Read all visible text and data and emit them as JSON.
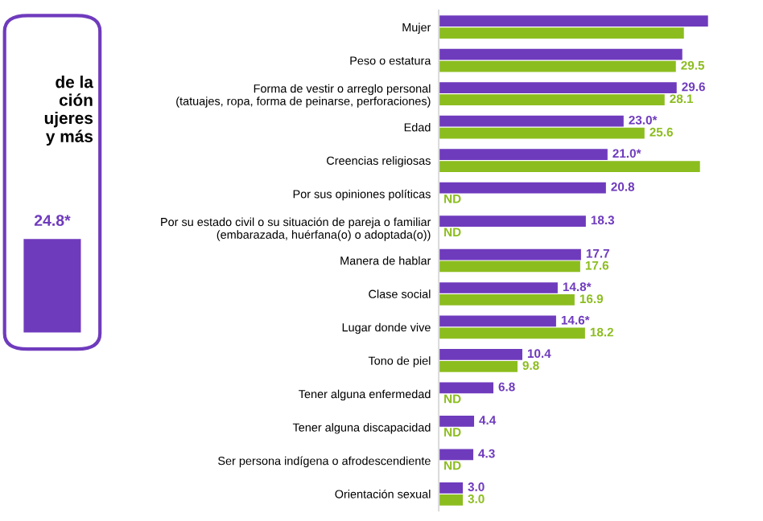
{
  "chart_data": [
    {
      "type": "other",
      "annotations": [
        "de la\nción\nujeres\ny más",
        "24.8*"
      ],
      "color": "#6f3bbd"
    },
    {
      "type": "bar",
      "orientation": "horizontal",
      "tick_labels": "y",
      "categories": [
        "Mujer",
        "Peso o estatura",
        "Forma de vestir o arreglo personal\n(tatuajes, ropa, forma de peinarse, perforaciones)",
        "Edad",
        "Creencias religiosas",
        "Por sus opiniones políticas",
        "Por su estado civil o su situación de pareja o familiar\n(embarazada, huérfana(o) o adoptada(o))",
        "Manera de hablar",
        "Clase social",
        "Lugar donde vive",
        "Tono de piel",
        "Tener alguna enfermedad",
        "Tener alguna discapacidad",
        "Ser persona indígena o afrodescendiente",
        "Orientación sexual"
      ],
      "series": [
        {
          "color": "#6f3bbd",
          "values": [
            33.5,
            30.3,
            29.6,
            23.0,
            21.0,
            20.8,
            18.3,
            17.7,
            14.8,
            14.6,
            10.4,
            6.8,
            4.4,
            4.3,
            3.0
          ],
          "value_labels": [
            null,
            null,
            "29.6",
            "23.0*",
            "21.0*",
            "20.8",
            "18.3",
            "17.7",
            "14.8*",
            "14.6*",
            "10.4",
            "6.8",
            "4.4",
            "4.3",
            "3.0"
          ]
        },
        {
          "color": "#8cbd1f",
          "values": [
            30.5,
            29.5,
            28.1,
            25.6,
            32.5,
            null,
            null,
            17.6,
            16.9,
            18.2,
            9.8,
            null,
            null,
            null,
            3.0
          ],
          "value_labels": [
            null,
            "29.5",
            "28.1",
            "25.6",
            null,
            "ND",
            "ND",
            "17.6",
            "16.9",
            "18.2",
            "9.8",
            "ND",
            "ND",
            "ND",
            "3.0"
          ]
        }
      ]
    }
  ]
}
